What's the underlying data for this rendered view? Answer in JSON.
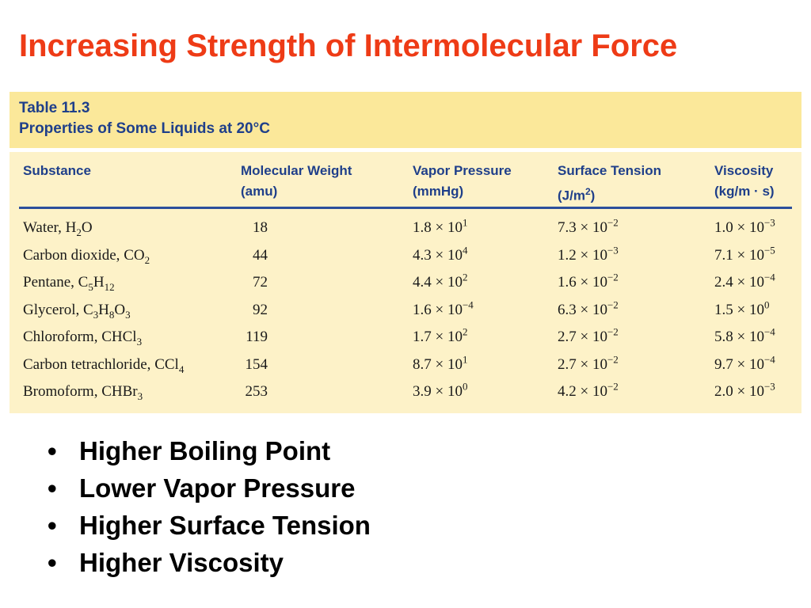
{
  "title": "Increasing Strength of Intermolecular Force",
  "table": {
    "caption_line1": "Table 11.3",
    "caption_line2": "Properties of Some Liquids at 20°C",
    "headers": [
      {
        "line1": "",
        "line2": "Substance"
      },
      {
        "line1": "Molecular Weight",
        "line2": "(amu)"
      },
      {
        "line1": "Vapor Pressure",
        "line2": "(mmHg)"
      },
      {
        "line1": "Surface Tension",
        "line2_base": "(J/m",
        "line2_sup": "2",
        "line2_end": ")"
      },
      {
        "line1": "Viscosity",
        "line2": "(kg/m · s)"
      }
    ],
    "rows": [
      {
        "substance": {
          "name": "Water, ",
          "parts": [
            {
              "t": "H"
            },
            {
              "s": "2"
            },
            {
              "t": "O"
            }
          ]
        },
        "mw": "18",
        "vp": {
          "mant": "1.8",
          "exp": "1"
        },
        "st": {
          "mant": "7.3",
          "exp": "−2"
        },
        "visc": {
          "mant": "1.0",
          "exp": "−3"
        }
      },
      {
        "substance": {
          "name": "Carbon dioxide, ",
          "parts": [
            {
              "t": "CO"
            },
            {
              "s": "2"
            }
          ]
        },
        "mw": "44",
        "vp": {
          "mant": "4.3",
          "exp": "4"
        },
        "st": {
          "mant": "1.2",
          "exp": "−3"
        },
        "visc": {
          "mant": "7.1",
          "exp": "−5"
        }
      },
      {
        "substance": {
          "name": "Pentane, ",
          "parts": [
            {
              "t": "C"
            },
            {
              "s": "5"
            },
            {
              "t": "H"
            },
            {
              "s": "12"
            }
          ]
        },
        "mw": "72",
        "vp": {
          "mant": "4.4",
          "exp": "2"
        },
        "st": {
          "mant": "1.6",
          "exp": "−2"
        },
        "visc": {
          "mant": "2.4",
          "exp": "−4"
        }
      },
      {
        "substance": {
          "name": "Glycerol, ",
          "parts": [
            {
              "t": "C"
            },
            {
              "s": "3"
            },
            {
              "t": "H"
            },
            {
              "s": "8"
            },
            {
              "t": "O"
            },
            {
              "s": "3"
            }
          ]
        },
        "mw": "92",
        "vp": {
          "mant": "1.6",
          "exp": "−4"
        },
        "st": {
          "mant": "6.3",
          "exp": "−2"
        },
        "visc": {
          "mant": "1.5",
          "exp": "0"
        }
      },
      {
        "substance": {
          "name": "Chloroform, ",
          "parts": [
            {
              "t": "CHCl"
            },
            {
              "s": "3"
            }
          ]
        },
        "mw": "119",
        "vp": {
          "mant": "1.7",
          "exp": "2"
        },
        "st": {
          "mant": "2.7",
          "exp": "−2"
        },
        "visc": {
          "mant": "5.8",
          "exp": "−4"
        }
      },
      {
        "substance": {
          "name": "Carbon tetrachloride, ",
          "parts": [
            {
              "t": "CCl"
            },
            {
              "s": "4"
            }
          ]
        },
        "mw": "154",
        "vp": {
          "mant": "8.7",
          "exp": "1"
        },
        "st": {
          "mant": "2.7",
          "exp": "−2"
        },
        "visc": {
          "mant": "9.7",
          "exp": "−4"
        }
      },
      {
        "substance": {
          "name": "Bromoform, ",
          "parts": [
            {
              "t": "CHBr"
            },
            {
              "s": "3"
            }
          ]
        },
        "mw": "253",
        "vp": {
          "mant": "3.9",
          "exp": "0"
        },
        "st": {
          "mant": "4.2",
          "exp": "−2"
        },
        "visc": {
          "mant": "2.0",
          "exp": "−3"
        }
      }
    ]
  },
  "bullet_char": "•",
  "bullets": [
    "Higher Boiling Point",
    "Lower Vapor Pressure",
    "Higher Surface Tension",
    "Higher Viscosity"
  ],
  "colors": {
    "title": "#ee3b16",
    "caption_band": "#fbe89a",
    "table_body": "#fdf2c8",
    "header_text": "#1f3f8a",
    "rule": "#2c4f9c"
  }
}
